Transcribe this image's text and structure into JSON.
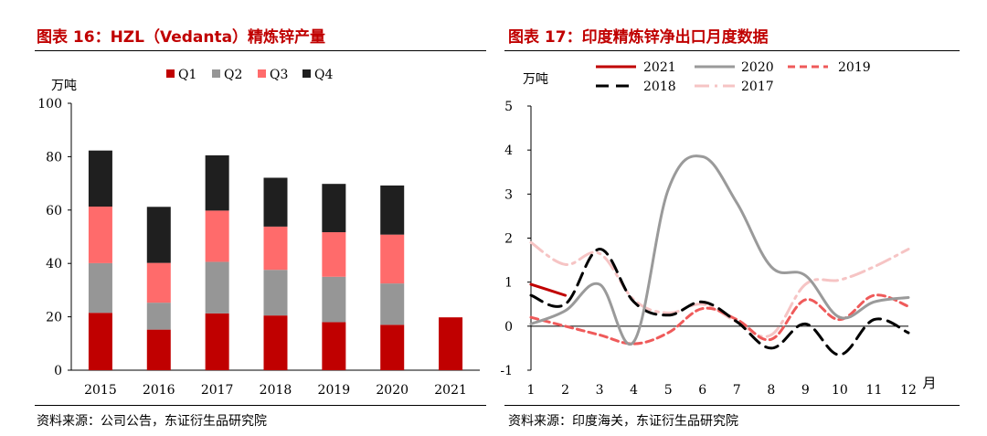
{
  "left_panel": {
    "title": "图表 16：HZL（Vedanta）精炼锌产量",
    "source": "资料来源：公司公告，东证衍生品研究院"
  },
  "right_panel": {
    "title": "图表 17：印度精炼锌净出口月度数据",
    "source": "资料来源：印度海关，东证衍生品研究院"
  },
  "colors": {
    "title_red": "#c00000",
    "q1": "#c00000",
    "q2": "#969696",
    "q3": "#ff6b6b",
    "q4": "#1f1f1f",
    "s2021": "#c00000",
    "s2020": "#9a9a9a",
    "s2019": "#ef5a5a",
    "s2018": "#000000",
    "s2017": "#f6c4c4"
  },
  "chart_data": [
    {
      "type": "bar",
      "stacked": true,
      "title": "HZL（Vedanta）精炼锌产量",
      "ylabel": "万吨",
      "xlabel": "",
      "ylim": [
        0,
        100
      ],
      "yticks": [
        0,
        20,
        40,
        60,
        80,
        100
      ],
      "categories": [
        "2015",
        "2016",
        "2017",
        "2018",
        "2019",
        "2020",
        "2021"
      ],
      "legend_position": "top",
      "series": [
        {
          "name": "Q1",
          "values": [
            21.5,
            15.2,
            21.3,
            20.5,
            18.0,
            17.0,
            19.8
          ]
        },
        {
          "name": "Q2",
          "values": [
            18.6,
            10.1,
            19.3,
            17.1,
            17.0,
            15.5,
            null
          ]
        },
        {
          "name": "Q3",
          "values": [
            21.2,
            14.9,
            19.2,
            16.2,
            16.7,
            18.3,
            null
          ]
        },
        {
          "name": "Q4",
          "values": [
            21.0,
            21.0,
            20.7,
            18.3,
            18.1,
            18.4,
            null
          ]
        }
      ]
    },
    {
      "type": "line",
      "title": "印度精炼锌净出口月度数据",
      "ylabel": "万吨",
      "xlabel": "月",
      "ylim": [
        -1,
        5
      ],
      "yticks": [
        -1,
        0,
        1,
        2,
        3,
        4,
        5
      ],
      "x": [
        1,
        2,
        3,
        4,
        5,
        6,
        7,
        8,
        9,
        10,
        11,
        12
      ],
      "legend_position": "top",
      "series": [
        {
          "name": "2021",
          "style": "solid",
          "values": [
            0.95,
            0.7,
            null,
            null,
            null,
            null,
            null,
            null,
            null,
            null,
            null,
            null
          ]
        },
        {
          "name": "2020",
          "style": "solid",
          "values": [
            0.05,
            0.35,
            0.95,
            -0.35,
            3.1,
            3.85,
            2.8,
            1.35,
            1.15,
            0.2,
            0.55,
            0.65
          ]
        },
        {
          "name": "2019",
          "style": "dashed",
          "values": [
            0.2,
            0.0,
            -0.2,
            -0.4,
            -0.15,
            0.4,
            0.15,
            -0.3,
            0.6,
            0.15,
            0.7,
            0.45
          ]
        },
        {
          "name": "2018",
          "style": "longdash",
          "values": [
            0.7,
            0.5,
            1.75,
            0.55,
            0.25,
            0.55,
            0.1,
            -0.5,
            0.05,
            -0.65,
            0.15,
            -0.15
          ]
        },
        {
          "name": "2017",
          "style": "dashdot",
          "values": [
            1.9,
            1.4,
            1.65,
            0.6,
            0.3,
            0.5,
            0.1,
            -0.2,
            0.95,
            1.05,
            1.35,
            1.75
          ]
        }
      ]
    }
  ]
}
